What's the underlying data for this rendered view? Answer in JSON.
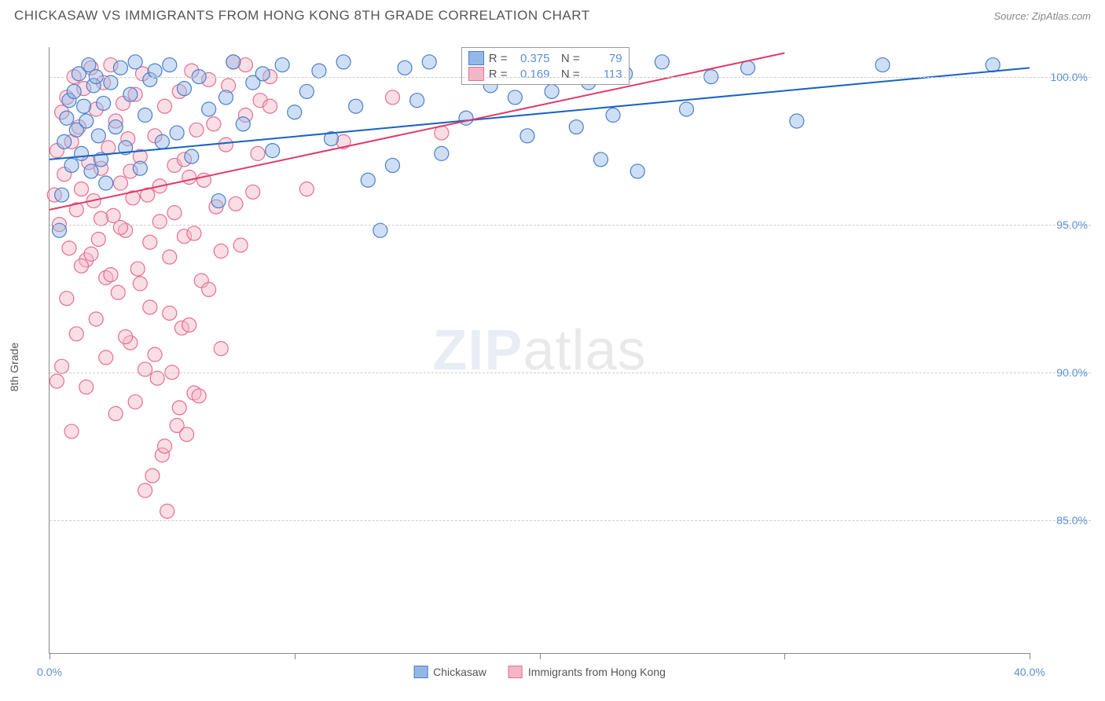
{
  "title": "CHICKASAW VS IMMIGRANTS FROM HONG KONG 8TH GRADE CORRELATION CHART",
  "source_label": "Source: ZipAtlas.com",
  "y_axis_label": "8th Grade",
  "watermark": {
    "bold": "ZIP",
    "rest": "atlas"
  },
  "chart": {
    "type": "scatter",
    "background_color": "#ffffff",
    "grid_color": "#cccccc",
    "axis_color": "#888888",
    "text_color": "#555555",
    "value_color": "#5b8fd6",
    "xlim": [
      0,
      40
    ],
    "ylim": [
      80.5,
      101.0
    ],
    "x_ticks": [
      0,
      10,
      20,
      30,
      40
    ],
    "x_tick_labels": [
      "0.0%",
      "",
      "",
      "",
      "40.0%"
    ],
    "y_ticks": [
      85.0,
      90.0,
      95.0,
      100.0
    ],
    "y_tick_labels": [
      "85.0%",
      "90.0%",
      "95.0%",
      "100.0%"
    ],
    "marker_radius": 9,
    "marker_opacity": 0.45,
    "line_width": 2,
    "series": [
      {
        "id": "chickasaw",
        "label": "Chickasaw",
        "color_fill": "#93b8e8",
        "color_stroke": "#4b7fc9",
        "line_color": "#1b63c6",
        "r": "0.375",
        "n": "79",
        "trend": {
          "x1": 0,
          "y1": 97.2,
          "x2": 40,
          "y2": 100.3
        },
        "points": [
          [
            0.4,
            94.8
          ],
          [
            0.5,
            96.0
          ],
          [
            0.6,
            97.8
          ],
          [
            0.7,
            98.6
          ],
          [
            0.8,
            99.2
          ],
          [
            0.9,
            97.0
          ],
          [
            1.0,
            99.5
          ],
          [
            1.1,
            98.2
          ],
          [
            1.2,
            100.1
          ],
          [
            1.3,
            97.4
          ],
          [
            1.4,
            99.0
          ],
          [
            1.5,
            98.5
          ],
          [
            1.6,
            100.4
          ],
          [
            1.7,
            96.8
          ],
          [
            1.8,
            99.7
          ],
          [
            1.9,
            100.0
          ],
          [
            2.0,
            98.0
          ],
          [
            2.1,
            97.2
          ],
          [
            2.2,
            99.1
          ],
          [
            2.3,
            96.4
          ],
          [
            2.5,
            99.8
          ],
          [
            2.7,
            98.3
          ],
          [
            2.9,
            100.3
          ],
          [
            3.1,
            97.6
          ],
          [
            3.3,
            99.4
          ],
          [
            3.5,
            100.5
          ],
          [
            3.7,
            96.9
          ],
          [
            3.9,
            98.7
          ],
          [
            4.1,
            99.9
          ],
          [
            4.3,
            100.2
          ],
          [
            4.6,
            97.8
          ],
          [
            4.9,
            100.4
          ],
          [
            5.2,
            98.1
          ],
          [
            5.5,
            99.6
          ],
          [
            5.8,
            97.3
          ],
          [
            6.1,
            100.0
          ],
          [
            6.5,
            98.9
          ],
          [
            6.9,
            95.8
          ],
          [
            7.2,
            99.3
          ],
          [
            7.5,
            100.5
          ],
          [
            7.9,
            98.4
          ],
          [
            8.3,
            99.8
          ],
          [
            8.7,
            100.1
          ],
          [
            9.1,
            97.5
          ],
          [
            9.5,
            100.4
          ],
          [
            10.0,
            98.8
          ],
          [
            10.5,
            99.5
          ],
          [
            11.0,
            100.2
          ],
          [
            11.5,
            97.9
          ],
          [
            12.0,
            100.5
          ],
          [
            12.5,
            99.0
          ],
          [
            13.0,
            96.5
          ],
          [
            13.5,
            94.8
          ],
          [
            14.0,
            97.0
          ],
          [
            14.5,
            100.3
          ],
          [
            15.0,
            99.2
          ],
          [
            15.5,
            100.5
          ],
          [
            16.0,
            97.4
          ],
          [
            17.0,
            98.6
          ],
          [
            18.0,
            99.7
          ],
          [
            18.5,
            100.0
          ],
          [
            19.0,
            99.3
          ],
          [
            19.5,
            98.0
          ],
          [
            20.0,
            100.2
          ],
          [
            20.5,
            99.5
          ],
          [
            21.0,
            100.4
          ],
          [
            21.5,
            98.3
          ],
          [
            22.0,
            99.8
          ],
          [
            22.5,
            97.2
          ],
          [
            23.0,
            98.7
          ],
          [
            23.5,
            100.1
          ],
          [
            24.0,
            96.8
          ],
          [
            25.0,
            100.5
          ],
          [
            26.0,
            98.9
          ],
          [
            27.0,
            100.0
          ],
          [
            28.5,
            100.3
          ],
          [
            30.5,
            98.5
          ],
          [
            34.0,
            100.4
          ],
          [
            38.5,
            100.4
          ]
        ]
      },
      {
        "id": "hong_kong",
        "label": "Immigrants from Hong Kong",
        "color_fill": "#f4b6c7",
        "color_stroke": "#e56f8f",
        "line_color": "#e13a6a",
        "r": "0.169",
        "n": "113",
        "trend": {
          "x1": 0,
          "y1": 95.5,
          "x2": 30,
          "y2": 100.8
        },
        "points": [
          [
            0.2,
            96.0
          ],
          [
            0.3,
            97.5
          ],
          [
            0.4,
            95.0
          ],
          [
            0.5,
            98.8
          ],
          [
            0.6,
            96.7
          ],
          [
            0.7,
            99.3
          ],
          [
            0.8,
            94.2
          ],
          [
            0.9,
            97.8
          ],
          [
            1.0,
            100.0
          ],
          [
            1.1,
            95.5
          ],
          [
            1.2,
            98.3
          ],
          [
            1.3,
            96.2
          ],
          [
            1.4,
            99.6
          ],
          [
            1.5,
            93.8
          ],
          [
            1.6,
            97.1
          ],
          [
            1.7,
            100.3
          ],
          [
            1.8,
            95.8
          ],
          [
            1.9,
            98.9
          ],
          [
            2.0,
            94.5
          ],
          [
            2.1,
            96.9
          ],
          [
            2.2,
            99.8
          ],
          [
            2.3,
            93.2
          ],
          [
            2.4,
            97.6
          ],
          [
            2.5,
            100.4
          ],
          [
            2.6,
            95.3
          ],
          [
            2.7,
            98.5
          ],
          [
            2.8,
            92.7
          ],
          [
            2.9,
            96.4
          ],
          [
            3.0,
            99.1
          ],
          [
            3.1,
            94.8
          ],
          [
            3.2,
            97.9
          ],
          [
            3.3,
            91.0
          ],
          [
            3.4,
            95.9
          ],
          [
            3.5,
            99.4
          ],
          [
            3.6,
            93.5
          ],
          [
            3.7,
            97.3
          ],
          [
            3.8,
            100.1
          ],
          [
            3.9,
            90.1
          ],
          [
            4.0,
            96.0
          ],
          [
            4.1,
            92.2
          ],
          [
            4.2,
            86.5
          ],
          [
            4.3,
            98.0
          ],
          [
            4.4,
            89.8
          ],
          [
            4.5,
            95.1
          ],
          [
            4.6,
            87.2
          ],
          [
            4.7,
            99.0
          ],
          [
            4.8,
            85.3
          ],
          [
            4.9,
            93.9
          ],
          [
            5.0,
            90.0
          ],
          [
            5.1,
            97.0
          ],
          [
            5.2,
            88.2
          ],
          [
            5.3,
            99.5
          ],
          [
            5.4,
            91.5
          ],
          [
            5.5,
            94.6
          ],
          [
            5.6,
            87.9
          ],
          [
            5.7,
            96.6
          ],
          [
            5.8,
            100.2
          ],
          [
            5.9,
            89.3
          ],
          [
            6.0,
            98.2
          ],
          [
            6.2,
            93.1
          ],
          [
            6.5,
            99.9
          ],
          [
            6.8,
            95.6
          ],
          [
            7.0,
            90.8
          ],
          [
            7.2,
            97.7
          ],
          [
            7.5,
            100.5
          ],
          [
            7.8,
            94.3
          ],
          [
            8.0,
            98.7
          ],
          [
            8.3,
            96.1
          ],
          [
            8.6,
            99.2
          ],
          [
            9.0,
            100.0
          ],
          [
            0.3,
            89.7
          ],
          [
            0.5,
            90.2
          ],
          [
            0.7,
            92.5
          ],
          [
            0.9,
            88.0
          ],
          [
            1.1,
            91.3
          ],
          [
            1.3,
            93.6
          ],
          [
            1.5,
            89.5
          ],
          [
            1.7,
            94.0
          ],
          [
            1.9,
            91.8
          ],
          [
            2.1,
            95.2
          ],
          [
            2.3,
            90.5
          ],
          [
            2.5,
            93.3
          ],
          [
            2.7,
            88.6
          ],
          [
            2.9,
            94.9
          ],
          [
            3.1,
            91.2
          ],
          [
            3.3,
            96.8
          ],
          [
            3.5,
            89.0
          ],
          [
            3.7,
            93.0
          ],
          [
            3.9,
            86.0
          ],
          [
            4.1,
            94.4
          ],
          [
            4.3,
            90.6
          ],
          [
            4.5,
            96.3
          ],
          [
            4.7,
            87.5
          ],
          [
            4.9,
            92.0
          ],
          [
            5.1,
            95.4
          ],
          [
            5.3,
            88.8
          ],
          [
            5.5,
            97.2
          ],
          [
            5.7,
            91.6
          ],
          [
            5.9,
            94.7
          ],
          [
            6.1,
            89.2
          ],
          [
            6.3,
            96.5
          ],
          [
            6.5,
            92.8
          ],
          [
            6.7,
            98.4
          ],
          [
            7.0,
            94.1
          ],
          [
            7.3,
            99.7
          ],
          [
            7.6,
            95.7
          ],
          [
            8.0,
            100.4
          ],
          [
            8.5,
            97.4
          ],
          [
            9.0,
            99.0
          ],
          [
            10.5,
            96.2
          ],
          [
            12.0,
            97.8
          ],
          [
            14.0,
            99.3
          ],
          [
            16.0,
            98.1
          ]
        ]
      }
    ],
    "bottom_legend": [
      {
        "swatch_fill": "#93b8e8",
        "swatch_stroke": "#4b7fc9",
        "label_key": "chart.series.0.label"
      },
      {
        "swatch_fill": "#f4b6c7",
        "swatch_stroke": "#e56f8f",
        "label_key": "chart.series.1.label"
      }
    ],
    "stat_box": {
      "left_pct": 42,
      "top_pct": 0
    }
  }
}
